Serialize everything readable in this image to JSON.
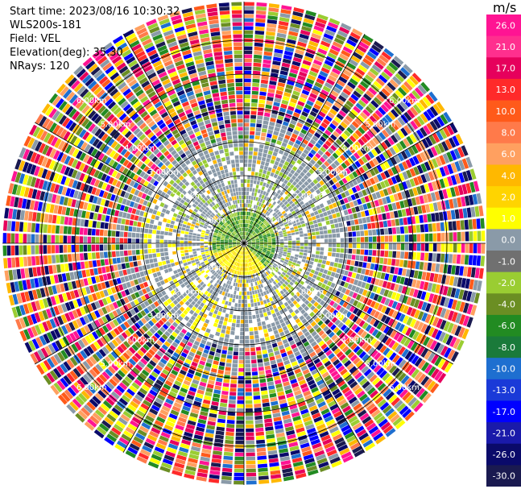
{
  "header": {
    "start_time": "Start time: 2023/08/16 10:30:32",
    "instrument": "WLS200s-181",
    "field": "Field: VEL",
    "elevation": "Elevation(deg): 35.30",
    "nrays": "NRays: 120"
  },
  "range_rings": [
    "1.00km",
    "2.00km",
    "3.00km",
    "4.00km",
    "5.00km",
    "6.00km"
  ],
  "colorbar": {
    "unit": "m/s",
    "ticks": [
      "26.0",
      "21.0",
      "17.0",
      "13.0",
      "10.0",
      "8.0",
      "6.0",
      "4.0",
      "2.0",
      "1.0",
      "0.0",
      "-1.0",
      "-2.0",
      "-4.0",
      "-6.0",
      "-8.0",
      "-10.0",
      "-13.0",
      "-17.0",
      "-21.0",
      "-26.0",
      "-30.0"
    ],
    "colors": [
      "#ff1493",
      "#ff2f8e",
      "#e6005c",
      "#ff2a2a",
      "#ff5a1a",
      "#ff7a4a",
      "#ffa060",
      "#ffb800",
      "#ffd400",
      "#ffff00",
      "#8a9aa8",
      "#707070",
      "#9acd32",
      "#6b8e23",
      "#228b22",
      "#1a7a3a",
      "#1e6fd0",
      "#1a3ad8",
      "#0000ff",
      "#1a1aaa",
      "#0a0a6a",
      "#1a1a50"
    ]
  }
}
